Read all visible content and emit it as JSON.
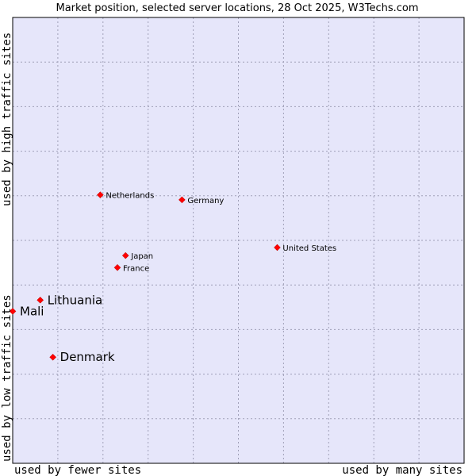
{
  "chart_data": {
    "type": "scatter",
    "title": "Market position, selected server locations, 28 Oct 2025, W3Techs.com",
    "x_axis": {
      "low_label": "used by fewer sites",
      "high_label": "used by many sites",
      "range": [
        0,
        100
      ]
    },
    "y_axis": {
      "low_label": "used by low traffic sites",
      "high_label": "used by high traffic sites",
      "range": [
        0,
        100
      ]
    },
    "grid": true,
    "colors": {
      "plot_background": "#e6e6fa",
      "grid": "#a0a0b8",
      "marker": "#ff0000",
      "border": "#000000"
    },
    "points": [
      {
        "name": "Netherlands",
        "x": 19.4,
        "y": 60.2,
        "label_size": "small"
      },
      {
        "name": "Germany",
        "x": 37.5,
        "y": 59.1,
        "label_size": "small"
      },
      {
        "name": "United States",
        "x": 58.6,
        "y": 48.4,
        "label_size": "small"
      },
      {
        "name": "Japan",
        "x": 25.0,
        "y": 46.6,
        "label_size": "small"
      },
      {
        "name": "France",
        "x": 23.2,
        "y": 43.9,
        "label_size": "small"
      },
      {
        "name": "Lithuania",
        "x": 6.1,
        "y": 36.6,
        "label_size": "large"
      },
      {
        "name": "Mali",
        "x": 0.0,
        "y": 34.1,
        "label_size": "large"
      },
      {
        "name": "Denmark",
        "x": 8.9,
        "y": 23.8,
        "label_size": "large"
      }
    ]
  }
}
